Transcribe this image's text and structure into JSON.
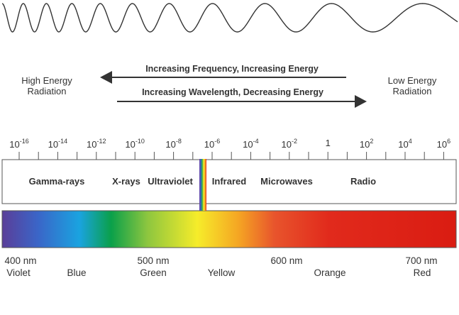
{
  "labels": {
    "high_energy": [
      "High Energy",
      "Radiation"
    ],
    "low_energy": [
      "Low Energy",
      "Radiation"
    ],
    "arrow_top": "Increasing Frequency, Increasing Energy",
    "arrow_bottom": "Increasing Wavelength, Decreasing Energy"
  },
  "wavelength_scale": [
    {
      "base": "10",
      "exp": "-16"
    },
    {
      "base": "10",
      "exp": "-14"
    },
    {
      "base": "10",
      "exp": "-12"
    },
    {
      "base": "10",
      "exp": "-10"
    },
    {
      "base": "10",
      "exp": "-8"
    },
    {
      "base": "10",
      "exp": "-6"
    },
    {
      "base": "10",
      "exp": "-4"
    },
    {
      "base": "10",
      "exp": "-2"
    },
    {
      "base": "1",
      "exp": ""
    },
    {
      "base": "10",
      "exp": "2"
    },
    {
      "base": "10",
      "exp": "4"
    },
    {
      "base": "10",
      "exp": "6"
    }
  ],
  "bands": [
    "Gamma-rays",
    "X-rays",
    "Ultraviolet",
    "Infrared",
    "Microwaves",
    "Radio"
  ],
  "visible_wavelengths": [
    "400 nm",
    "500 nm",
    "600 nm",
    "700 nm"
  ],
  "visible_colors": [
    "Violet",
    "Blue",
    "Green",
    "Yellow",
    "Orange",
    "Red"
  ],
  "colors": {
    "line": "#333333",
    "spectrum": [
      "#5a3e99",
      "#3a66c8",
      "#1aa3e0",
      "#0aa04a",
      "#8dc63f",
      "#f6ec2a",
      "#f5a623",
      "#e8542c",
      "#e12a1c",
      "#da1c12"
    ]
  }
}
